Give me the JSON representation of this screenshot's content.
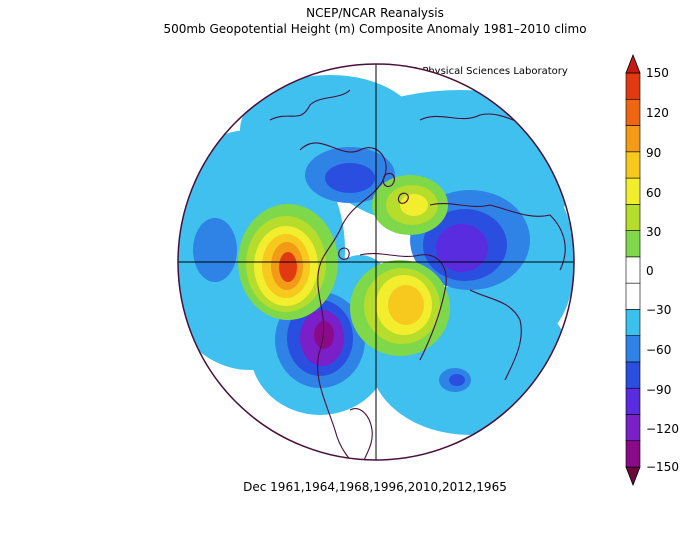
{
  "title_line1": "NCEP/NCAR Reanalysis",
  "title_line2": "500mb Geopotential Height (m) Composite Anomaly 1981–2010 climo",
  "credit": "NOAA Physical Sciences Laboratory",
  "footer": "Dec 1961,1964,1968,1996,2010,2012,1965",
  "colorbar": {
    "ticks": [
      "150",
      "120",
      "90",
      "60",
      "30",
      "0",
      "−30",
      "−60",
      "−90",
      "−120",
      "−150"
    ],
    "colors": [
      "#6b0a3a",
      "#8a0a8a",
      "#7b1fc8",
      "#5a2ce0",
      "#2a4fe0",
      "#2f83e6",
      "#3cc0ee",
      "#ffffff",
      "#ffffff",
      "#7fd84a",
      "#b6dc2c",
      "#f2ee2e",
      "#f7c81e",
      "#f39a16",
      "#ee6612",
      "#e23a10",
      "#c41a10"
    ]
  },
  "colors": {
    "border": "#4a0e3a",
    "negative_light": "#3fc0ee",
    "positive_peak": "#e8430f",
    "negative_peak": "#7a0db4"
  }
}
